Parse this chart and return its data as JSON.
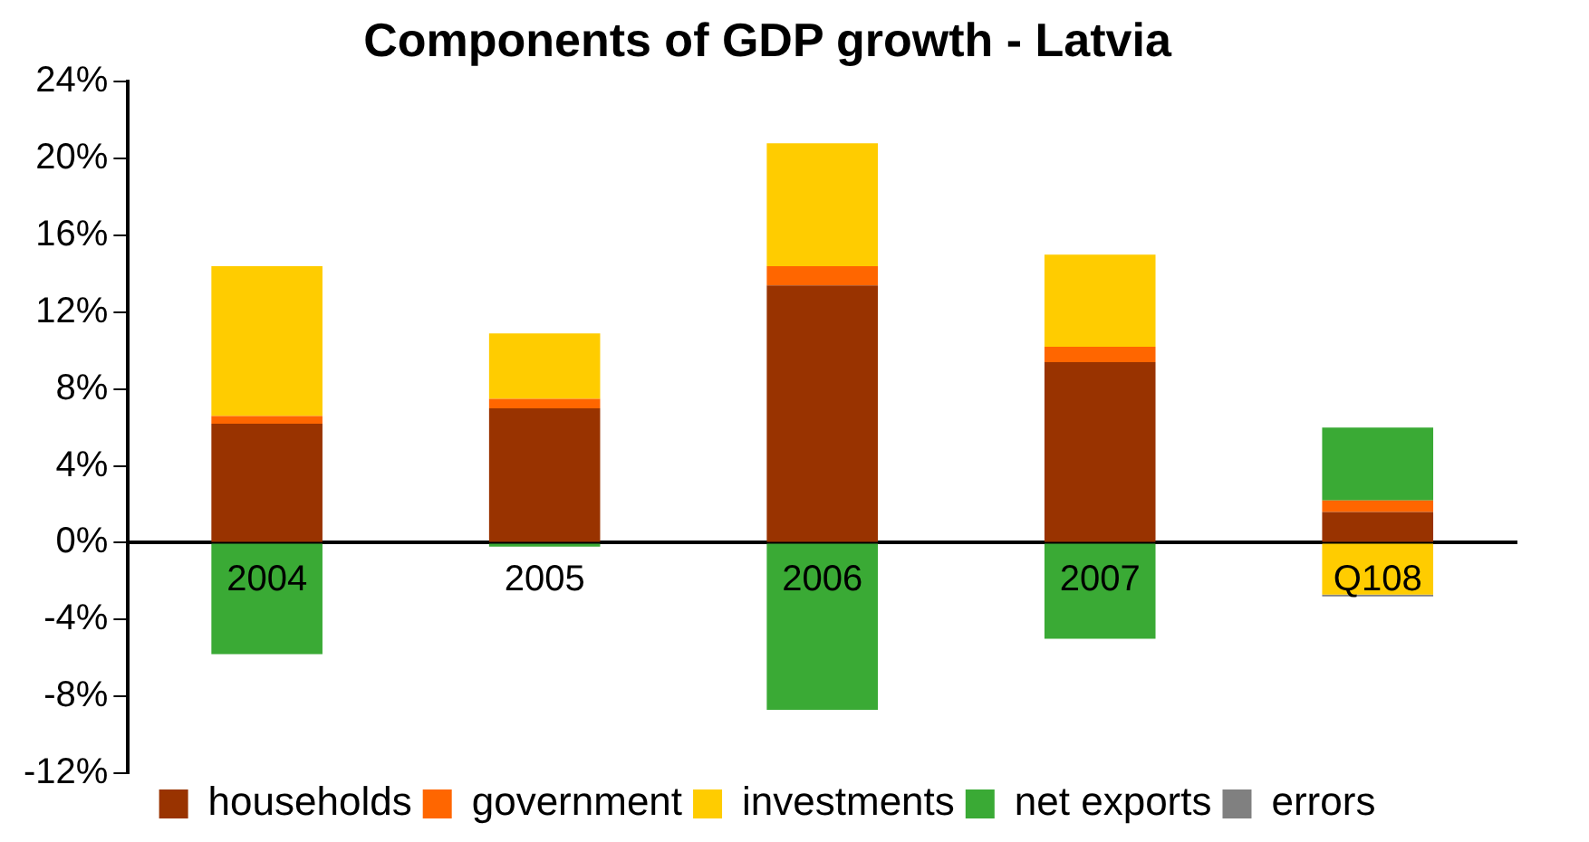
{
  "chart_data": {
    "type": "bar",
    "title": "Components of GDP growth - Latvia",
    "categories": [
      "2004",
      "2005",
      "2006",
      "2007",
      "Q108"
    ],
    "stacked": true,
    "ylim": [
      -12,
      24
    ],
    "yticks": [
      {
        "value": -12,
        "label": "-12%"
      },
      {
        "value": -8,
        "label": "-8%"
      },
      {
        "value": -4,
        "label": "-4%"
      },
      {
        "value": 0,
        "label": "0%"
      },
      {
        "value": 4,
        "label": "4%"
      },
      {
        "value": 8,
        "label": "8%"
      },
      {
        "value": 12,
        "label": "12%"
      },
      {
        "value": 16,
        "label": "16%"
      },
      {
        "value": 20,
        "label": "20%"
      },
      {
        "value": 24,
        "label": "24%"
      }
    ],
    "grid": false,
    "legend": "bottom",
    "series": [
      {
        "name": "households",
        "color": "#993300",
        "values": [
          6.2,
          7.0,
          13.4,
          9.4,
          1.6
        ]
      },
      {
        "name": "government",
        "color": "#ff6600",
        "values": [
          0.4,
          0.5,
          1.0,
          0.8,
          0.6
        ]
      },
      {
        "name": "investments",
        "color": "#ffcc00",
        "values": [
          7.8,
          3.4,
          6.4,
          4.8,
          -2.7
        ]
      },
      {
        "name": "net exports",
        "color": "#3aaa35",
        "values": [
          -5.8,
          -0.2,
          -8.7,
          -5.0,
          3.8
        ]
      },
      {
        "name": "errors",
        "color": "#808080",
        "values": [
          null,
          null,
          null,
          null,
          -0.1
        ]
      }
    ]
  }
}
